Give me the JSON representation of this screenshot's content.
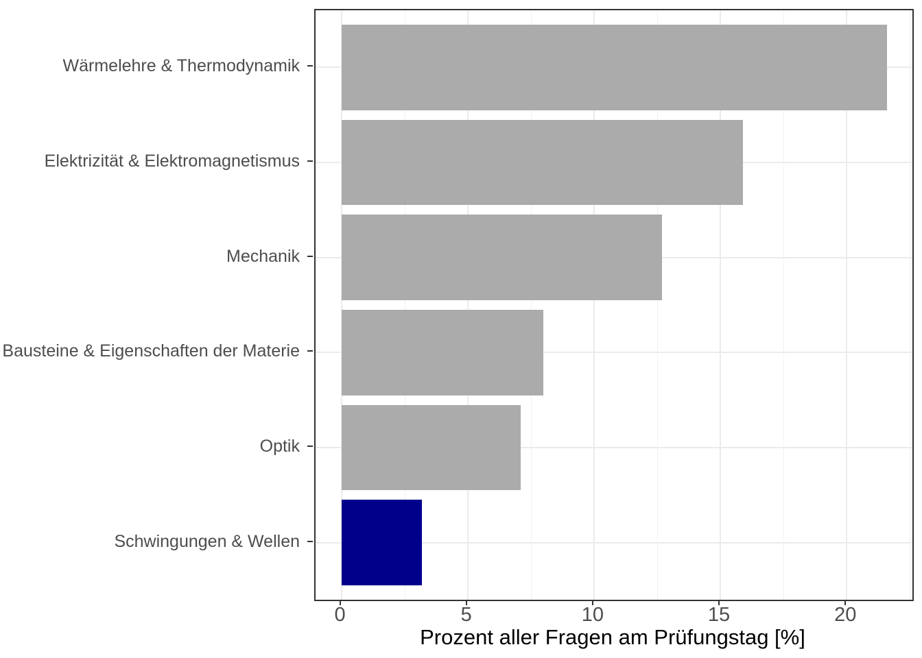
{
  "chart_data": {
    "type": "bar",
    "orientation": "horizontal",
    "title": "",
    "xlabel": "Prozent aller Fragen am Prüfungstag [%]",
    "ylabel": "",
    "categories": [
      "Wärmelehre & Thermodynamik",
      "Elektrizität & Elektromagnetismus",
      "Mechanik",
      "Bausteine & Eigenschaften der Materie",
      "Optik",
      "Schwingungen & Wellen"
    ],
    "values": [
      21.6,
      15.9,
      12.7,
      8.0,
      7.1,
      3.2
    ],
    "bar_colors": [
      "#ababab",
      "#ababab",
      "#ababab",
      "#ababab",
      "#ababab",
      "#00008b"
    ],
    "highlighted_category": "Schwingungen & Wellen",
    "x_major_ticks": [
      0,
      5,
      10,
      15,
      20
    ],
    "x_tick_labels": [
      "0",
      "5",
      "10",
      "15",
      "20"
    ],
    "x_minor_ticks": [
      2.5,
      7.5,
      12.5,
      17.5,
      22.5
    ],
    "xlim": [
      -1.02,
      22.6
    ],
    "bar_width_fraction": 0.9,
    "grid": "vertical major+minor, horizontal major at category centers",
    "legend": "none",
    "colors": {
      "default_bar": "#ababab",
      "highlight_bar": "#00008b",
      "grid_major": "#ebebeb",
      "grid_minor": "#f1f1f1",
      "panel_border": "#333333",
      "tick_mark": "#333333",
      "tick_label_text": "#4d4d4d",
      "axis_title_text": "#000000",
      "background": "#ffffff"
    }
  }
}
